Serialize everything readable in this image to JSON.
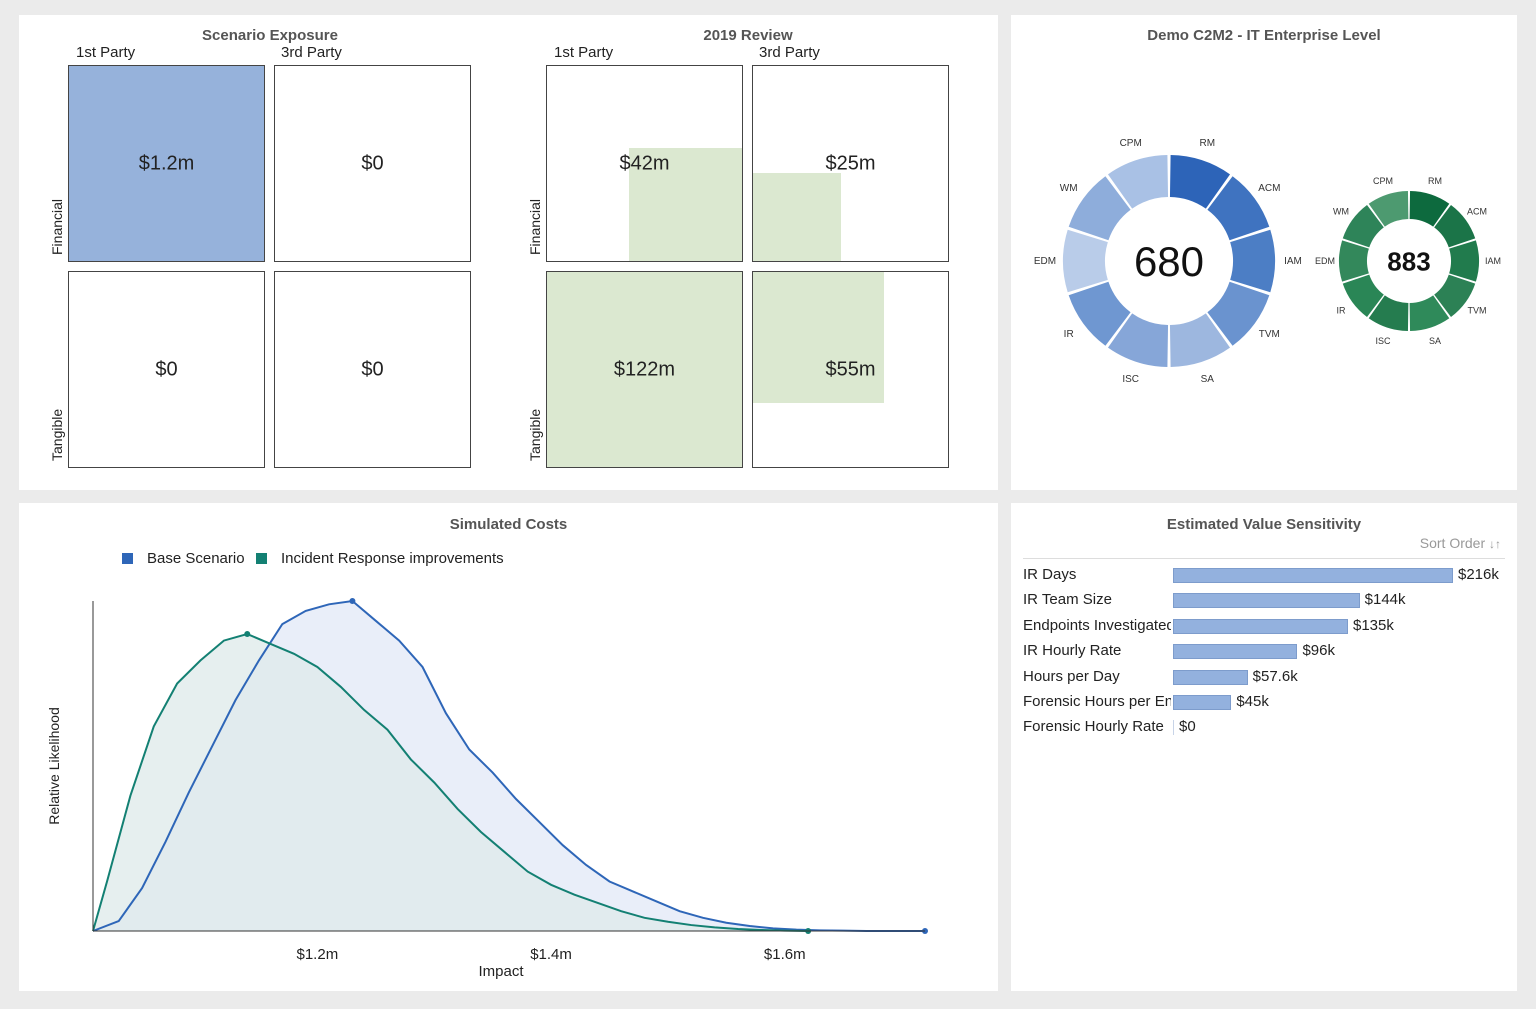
{
  "exposure": {
    "panels": [
      {
        "title": "Scenario Exposure",
        "col_headers": [
          "1st Party",
          "3rd Party"
        ],
        "row_labels": [
          "Financial",
          "Tangible"
        ],
        "cells": [
          {
            "value": "$1.2m",
            "fill": 1.0,
            "color": "#96b2db"
          },
          {
            "value": "$0",
            "fill": 0,
            "color": "#ffffff"
          },
          {
            "value": "$0",
            "fill": 0,
            "color": "#ffffff"
          },
          {
            "value": "$0",
            "fill": 0,
            "color": "#ffffff"
          }
        ]
      },
      {
        "title": "2019 Review",
        "col_headers": [
          "1st Party",
          "3rd Party"
        ],
        "row_labels": [
          "Financial",
          "Tangible"
        ],
        "cells": [
          {
            "value": "$42m",
            "fill": 0.58,
            "color": "#dbe8d0"
          },
          {
            "value": "$25m",
            "fill": 0.45,
            "color": "#dbe8d0"
          },
          {
            "value": "$122m",
            "fill": 1.0,
            "color": "#dbe8d0"
          },
          {
            "value": "$55m",
            "fill": 0.67,
            "color": "#dbe8d0"
          }
        ]
      }
    ]
  },
  "c2m2": {
    "title": "Demo C2M2 - IT Enterprise Level",
    "donuts": [
      {
        "score": "680",
        "labels": [
          "RM",
          "ACM",
          "IAM",
          "TVM",
          "SA",
          "ISC",
          "IR",
          "EDM",
          "WM",
          "CPM"
        ],
        "colors": [
          "#2d64b8",
          "#3f73c0",
          "#4c7ec5",
          "#6a93cf",
          "#9db7df",
          "#86a6d8",
          "#6f97d1",
          "#b9cce9",
          "#8eaddb",
          "#a9c1e5"
        ]
      },
      {
        "score": "883",
        "labels": [
          "RM",
          "ACM",
          "IAM",
          "TVM",
          "SA",
          "ISC",
          "IR",
          "EDM",
          "WM",
          "CPM"
        ],
        "colors": [
          "#0d6a3e",
          "#1b7448",
          "#217b4d",
          "#2c8155",
          "#2f8a5a",
          "#257c4f",
          "#2a8656",
          "#33885b",
          "#2e8459",
          "#4d9a70"
        ]
      }
    ]
  },
  "chart_data": [
    {
      "type": "area",
      "title": "Simulated Costs",
      "xlabel": "Impact",
      "ylabel": "Relative Likelihood",
      "x_tick_labels": [
        "$1.2m",
        "$1.4m",
        "$1.6m"
      ],
      "x_ticks": [
        1.2,
        1.4,
        1.6
      ],
      "xlim": [
        1.008,
        1.72
      ],
      "ylim": [
        0,
        1
      ],
      "legend": "top-left",
      "series": [
        {
          "name": "Base Scenario",
          "color": "#2e66b8",
          "fill": "#e9eef9",
          "x": [
            1.008,
            1.03,
            1.05,
            1.07,
            1.09,
            1.11,
            1.13,
            1.15,
            1.17,
            1.19,
            1.21,
            1.23,
            1.25,
            1.27,
            1.29,
            1.31,
            1.33,
            1.35,
            1.37,
            1.39,
            1.41,
            1.43,
            1.45,
            1.47,
            1.49,
            1.51,
            1.53,
            1.55,
            1.57,
            1.59,
            1.61,
            1.63,
            1.65,
            1.67,
            1.69,
            1.72
          ],
          "y": [
            0,
            0.03,
            0.13,
            0.27,
            0.42,
            0.56,
            0.7,
            0.82,
            0.93,
            0.97,
            0.99,
            1.0,
            0.94,
            0.88,
            0.8,
            0.66,
            0.55,
            0.48,
            0.4,
            0.33,
            0.26,
            0.2,
            0.15,
            0.12,
            0.09,
            0.06,
            0.04,
            0.025,
            0.015,
            0.008,
            0.004,
            0.002,
            0.001,
            0.0,
            0.0,
            0.0
          ]
        },
        {
          "name": "Incident Response improvements",
          "color": "#138073",
          "fill": "#dde9ea",
          "x": [
            1.008,
            1.02,
            1.04,
            1.06,
            1.08,
            1.1,
            1.12,
            1.14,
            1.16,
            1.18,
            1.2,
            1.22,
            1.24,
            1.26,
            1.28,
            1.3,
            1.32,
            1.34,
            1.36,
            1.38,
            1.4,
            1.42,
            1.44,
            1.46,
            1.48,
            1.5,
            1.52,
            1.54,
            1.56,
            1.58,
            1.6,
            1.62
          ],
          "y": [
            0,
            0.15,
            0.41,
            0.62,
            0.75,
            0.82,
            0.88,
            0.9,
            0.87,
            0.84,
            0.8,
            0.74,
            0.67,
            0.61,
            0.52,
            0.45,
            0.37,
            0.3,
            0.24,
            0.18,
            0.14,
            0.11,
            0.085,
            0.06,
            0.04,
            0.028,
            0.018,
            0.011,
            0.006,
            0.003,
            0.001,
            0.0
          ]
        }
      ]
    },
    {
      "type": "bar",
      "title": "Estimated Value Sensitivity",
      "sort_label": "Sort Order",
      "categories": [
        "IR Days",
        "IR Team Size",
        "Endpoints Investigated",
        "IR Hourly Rate",
        "Hours per Day",
        "Forensic Hours per Endpoint",
        "Forensic Hourly Rate"
      ],
      "values": [
        216,
        144,
        135,
        96,
        57.6,
        45,
        0
      ],
      "value_labels": [
        "$216k",
        "$144k",
        "$135k",
        "$96k",
        "$57.6k",
        "$45k",
        "$0"
      ],
      "xlim": [
        0,
        216
      ]
    }
  ]
}
